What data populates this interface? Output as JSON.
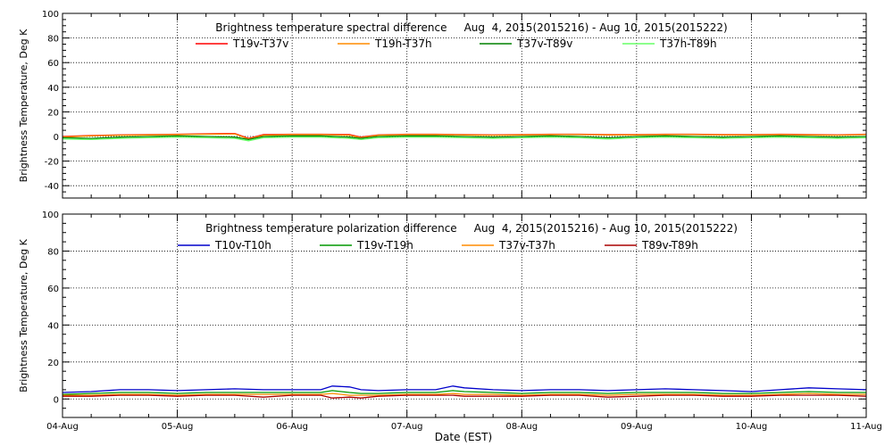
{
  "figure": {
    "xlabel": "Date (EST)",
    "x_ticks": [
      "04-Aug",
      "05-Aug",
      "06-Aug",
      "07-Aug",
      "08-Aug",
      "09-Aug",
      "10-Aug",
      "11-Aug"
    ]
  },
  "chart_data": [
    {
      "type": "line",
      "title": "Brightness temperature spectral difference     Aug  4, 2015(2015216) - Aug 10, 2015(2015222)",
      "ylabel": "Brightness Temperature, Deg K",
      "ylim": [
        -50,
        100
      ],
      "y_ticks": [
        -40,
        -20,
        0,
        20,
        40,
        60,
        80,
        100
      ],
      "y_tick_labels": [
        "-40",
        "-20",
        "0",
        "20",
        "40",
        "60",
        "80",
        "100"
      ],
      "xlim": [
        0,
        7
      ],
      "x_tick_labels": [
        "04-Aug",
        "05-Aug",
        "06-Aug",
        "07-Aug",
        "08-Aug",
        "09-Aug",
        "10-Aug",
        "11-Aug"
      ],
      "grid": true,
      "legend_position": "top",
      "x": [
        0,
        0.25,
        0.5,
        0.75,
        1.0,
        1.25,
        1.5,
        1.62,
        1.75,
        2.0,
        2.25,
        2.5,
        2.6,
        2.75,
        3.0,
        3.25,
        3.5,
        3.75,
        4.0,
        4.25,
        4.5,
        4.75,
        5.0,
        5.25,
        5.5,
        5.75,
        6.0,
        6.25,
        6.5,
        6.75,
        7.0
      ],
      "series": [
        {
          "name": "T19v-T37v",
          "color": "#ff0000",
          "values": [
            0,
            0.8,
            1.2,
            1.5,
            1.8,
            2.2,
            2.5,
            -1.5,
            1.5,
            1.8,
            1.8,
            1.5,
            -0.5,
            1.2,
            1.8,
            1.8,
            1.5,
            1.2,
            1.5,
            1.8,
            1.8,
            1.5,
            1.5,
            1.8,
            1.8,
            1.5,
            1.5,
            1.8,
            1.5,
            1.2,
            1.8
          ]
        },
        {
          "name": "T19h-T37h",
          "color": "#ff8c00",
          "values": [
            -0.5,
            0.5,
            1.0,
            1.2,
            1.5,
            1.8,
            2.0,
            -2.0,
            1.0,
            1.5,
            1.5,
            1.0,
            -1.0,
            1.0,
            1.5,
            1.5,
            1.2,
            1.0,
            1.2,
            1.5,
            1.5,
            1.2,
            1.2,
            1.5,
            1.5,
            1.2,
            1.2,
            1.5,
            1.2,
            1.0,
            1.5
          ]
        },
        {
          "name": "T37v-T89v",
          "color": "#008000",
          "values": [
            -1.0,
            -1.5,
            -0.5,
            0,
            0.5,
            0,
            -0.5,
            -2.5,
            0,
            0.5,
            0.5,
            -0.5,
            -1.5,
            0,
            0.5,
            0.5,
            0,
            -0.5,
            0,
            0.5,
            0,
            -1.0,
            0,
            0.5,
            0,
            -0.5,
            0,
            0.5,
            0,
            -0.5,
            0
          ]
        },
        {
          "name": "T37h-T89h",
          "color": "#66ff66",
          "values": [
            -2.0,
            -2.5,
            -1.5,
            -1.0,
            -0.5,
            -1.0,
            -1.5,
            -3.5,
            -1.0,
            -0.5,
            -0.5,
            -1.5,
            -2.5,
            -1.0,
            -0.5,
            -0.5,
            -1.0,
            -1.5,
            -1.0,
            -0.5,
            -1.0,
            -2.0,
            -1.0,
            -0.5,
            -1.0,
            -1.5,
            -1.0,
            -0.5,
            -1.0,
            -1.5,
            -1.0
          ]
        }
      ]
    },
    {
      "type": "line",
      "title": "Brightness temperature polarization difference     Aug  4, 2015(2015216) - Aug 10, 2015(2015222)",
      "ylabel": "Brightness Temperature, Deg K",
      "ylim": [
        -10,
        100
      ],
      "y_ticks": [
        0,
        20,
        40,
        60,
        80,
        100
      ],
      "y_tick_labels": [
        "0",
        "20",
        "40",
        "60",
        "80",
        "100"
      ],
      "xlim": [
        0,
        7
      ],
      "x_tick_labels": [
        "04-Aug",
        "05-Aug",
        "06-Aug",
        "07-Aug",
        "08-Aug",
        "09-Aug",
        "10-Aug",
        "11-Aug"
      ],
      "grid": true,
      "legend_position": "top",
      "x": [
        0,
        0.25,
        0.5,
        0.75,
        1.0,
        1.25,
        1.5,
        1.75,
        2.0,
        2.25,
        2.35,
        2.5,
        2.6,
        2.75,
        3.0,
        3.25,
        3.4,
        3.5,
        3.75,
        4.0,
        4.25,
        4.5,
        4.75,
        5.0,
        5.25,
        5.5,
        5.75,
        6.0,
        6.25,
        6.5,
        6.75,
        7.0
      ],
      "series": [
        {
          "name": "T10v-T10h",
          "color": "#0000cc",
          "values": [
            3.5,
            4.0,
            5.0,
            5.0,
            4.5,
            5.0,
            5.5,
            5.0,
            5.0,
            5.0,
            7.0,
            6.5,
            5.0,
            4.5,
            5.0,
            5.0,
            7.0,
            6.0,
            5.0,
            4.5,
            5.0,
            5.0,
            4.5,
            5.0,
            5.5,
            5.0,
            4.5,
            4.0,
            5.0,
            6.0,
            5.5,
            5.0
          ]
        },
        {
          "name": "T19v-T19h",
          "color": "#009900",
          "values": [
            2.5,
            3.0,
            3.5,
            3.5,
            3.0,
            3.5,
            3.5,
            3.5,
            3.5,
            3.5,
            4.5,
            3.5,
            3.0,
            3.0,
            3.5,
            3.5,
            4.5,
            4.0,
            3.5,
            3.0,
            3.5,
            3.5,
            3.0,
            3.5,
            3.5,
            3.5,
            3.0,
            3.0,
            3.5,
            4.0,
            3.5,
            3.5
          ]
        },
        {
          "name": "T37v-T37h",
          "color": "#ff8c00",
          "values": [
            2.0,
            2.0,
            2.5,
            2.5,
            2.0,
            2.5,
            2.5,
            2.5,
            2.5,
            2.5,
            3.0,
            2.0,
            2.0,
            2.0,
            2.5,
            2.5,
            3.0,
            2.5,
            2.5,
            2.0,
            2.5,
            2.5,
            2.0,
            2.5,
            2.5,
            2.5,
            2.0,
            2.0,
            2.5,
            3.0,
            2.5,
            2.5
          ]
        },
        {
          "name": "T89v-T89h",
          "color": "#aa0000",
          "values": [
            1.5,
            1.5,
            2.0,
            2.0,
            1.5,
            2.0,
            2.0,
            1.0,
            2.0,
            2.0,
            0.5,
            1.0,
            0.5,
            1.5,
            2.0,
            2.0,
            2.0,
            1.5,
            1.5,
            1.5,
            2.0,
            2.0,
            1.0,
            1.5,
            2.0,
            2.0,
            1.5,
            1.5,
            2.0,
            2.0,
            2.0,
            1.5
          ]
        }
      ]
    }
  ]
}
